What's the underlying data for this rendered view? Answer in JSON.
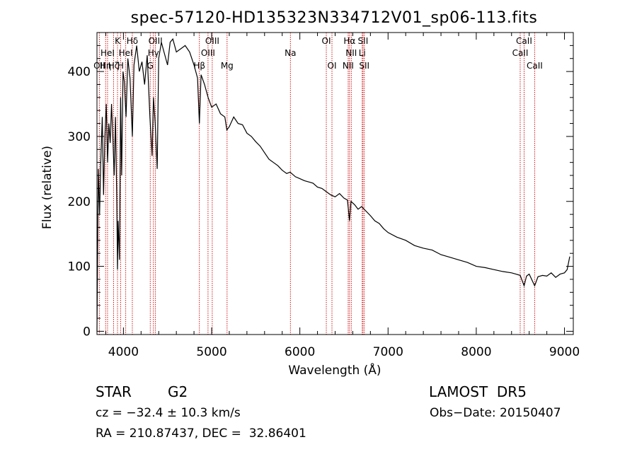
{
  "chart_data": {
    "type": "line",
    "title": "spec-57120-HD135323N334712V01_sp06-113.fits",
    "xlabel": "Wavelength (Å)",
    "ylabel": "Flux (relative)",
    "xlim": [
      3700,
      9100
    ],
    "ylim": [
      -5,
      460
    ],
    "x_ticks": [
      4000,
      5000,
      6000,
      7000,
      8000,
      9000
    ],
    "y_ticks": [
      0,
      100,
      200,
      300,
      400
    ],
    "series": [
      {
        "x": [
          3700,
          3715,
          3730,
          3745,
          3760,
          3775,
          3790,
          3805,
          3820,
          3835,
          3850,
          3865,
          3880,
          3895,
          3910,
          3925,
          3933,
          3940,
          3955,
          3968,
          3980,
          3995,
          4010,
          4030,
          4050,
          4075,
          4101,
          4120,
          4150,
          4180,
          4210,
          4240,
          4270,
          4300,
          4325,
          4340,
          4360,
          4383,
          4400,
          4430,
          4460,
          4500,
          4530,
          4560,
          4600,
          4650,
          4700,
          4750,
          4800,
          4840,
          4861,
          4880,
          4920,
          4960,
          5000,
          5050,
          5100,
          5150,
          5172,
          5200,
          5250,
          5300,
          5350,
          5400,
          5450,
          5500,
          5550,
          5600,
          5650,
          5700,
          5750,
          5800,
          5850,
          5890,
          5950,
          6000,
          6050,
          6100,
          6150,
          6200,
          6250,
          6300,
          6350,
          6400,
          6450,
          6500,
          6540,
          6563,
          6580,
          6620,
          6660,
          6700,
          6750,
          6800,
          6850,
          6900,
          6950,
          7000,
          7100,
          7200,
          7300,
          7400,
          7500,
          7600,
          7700,
          7800,
          7900,
          8000,
          8100,
          8200,
          8300,
          8400,
          8450,
          8498,
          8542,
          8570,
          8600,
          8662,
          8700,
          8750,
          8800,
          8850,
          8900,
          8950,
          9000,
          9030,
          9060
        ],
        "y": [
          0,
          250,
          180,
          270,
          330,
          210,
          300,
          350,
          260,
          320,
          290,
          350,
          300,
          240,
          330,
          200,
          95,
          170,
          110,
          360,
          240,
          400,
          385,
          330,
          420,
          390,
          300,
          410,
          440,
          400,
          415,
          380,
          425,
          330,
          270,
          360,
          320,
          250,
          420,
          445,
          430,
          410,
          445,
          450,
          430,
          435,
          440,
          430,
          410,
          390,
          320,
          395,
          380,
          360,
          345,
          350,
          335,
          330,
          310,
          315,
          330,
          320,
          318,
          305,
          300,
          292,
          285,
          275,
          265,
          260,
          255,
          248,
          243,
          245,
          238,
          235,
          232,
          230,
          228,
          222,
          220,
          215,
          210,
          207,
          212,
          205,
          202,
          170,
          200,
          195,
          188,
          192,
          185,
          178,
          170,
          166,
          158,
          152,
          145,
          140,
          132,
          128,
          125,
          118,
          114,
          110,
          106,
          100,
          98,
          95,
          92,
          90,
          88,
          86,
          70,
          85,
          88,
          70,
          84,
          86,
          85,
          90,
          83,
          88,
          90,
          95,
          115
        ]
      }
    ],
    "spectral_lines": [
      {
        "wavelength": 3727,
        "label": "OII",
        "row": 3
      },
      {
        "wavelength": 3798,
        "label": "Hη",
        "row": 3
      },
      {
        "wavelength": 3820,
        "label": "HeI",
        "row": 2
      },
      {
        "wavelength": 3889,
        "label": "Hζ",
        "row": 3
      },
      {
        "wavelength": 3933,
        "label": "K",
        "row": 1
      },
      {
        "wavelength": 3968,
        "label": "H",
        "row": 3
      },
      {
        "wavelength": 4026,
        "label": "HeI",
        "row": 2
      },
      {
        "wavelength": 4101,
        "label": "Hδ",
        "row": 1
      },
      {
        "wavelength": 4304,
        "label": "G",
        "row": 3
      },
      {
        "wavelength": 4340,
        "label": "Hγ",
        "row": 2
      },
      {
        "wavelength": 4363,
        "label": "OIII",
        "row": 1
      },
      {
        "wavelength": 4861,
        "label": "Hβ",
        "row": 3
      },
      {
        "wavelength": 4959,
        "label": "OIII",
        "row": 2
      },
      {
        "wavelength": 5007,
        "label": "OIII",
        "row": 1
      },
      {
        "wavelength": 5175,
        "label": "Mg",
        "row": 3
      },
      {
        "wavelength": 5893,
        "label": "Na",
        "row": 2
      },
      {
        "wavelength": 6300,
        "label": "OI",
        "row": 1
      },
      {
        "wavelength": 6364,
        "label": "OI",
        "row": 3
      },
      {
        "wavelength": 6548,
        "label": "NII",
        "row": 3
      },
      {
        "wavelength": 6563,
        "label": "Hα",
        "row": 1
      },
      {
        "wavelength": 6583,
        "label": "NII",
        "row": 2
      },
      {
        "wavelength": 6707,
        "label": "Li",
        "row": 2
      },
      {
        "wavelength": 6716,
        "label": "SII",
        "row": 1
      },
      {
        "wavelength": 6731,
        "label": "SII",
        "row": 3
      },
      {
        "wavelength": 8498,
        "label": "CaII",
        "row": 2
      },
      {
        "wavelength": 8542,
        "label": "CaII",
        "row": 1
      },
      {
        "wavelength": 8662,
        "label": "CaII",
        "row": 3
      }
    ],
    "line_color": "#000000",
    "marker_color": "#cc0000"
  },
  "info": {
    "object_type": "STAR",
    "subclass": "G2",
    "survey": "LAMOST  DR5",
    "cz": "cz = −32.4 ± 10.3 km/s",
    "obs_date": "Obs−Date: 20150407",
    "coords": "RA = 210.87437, DEC =  32.86401"
  }
}
